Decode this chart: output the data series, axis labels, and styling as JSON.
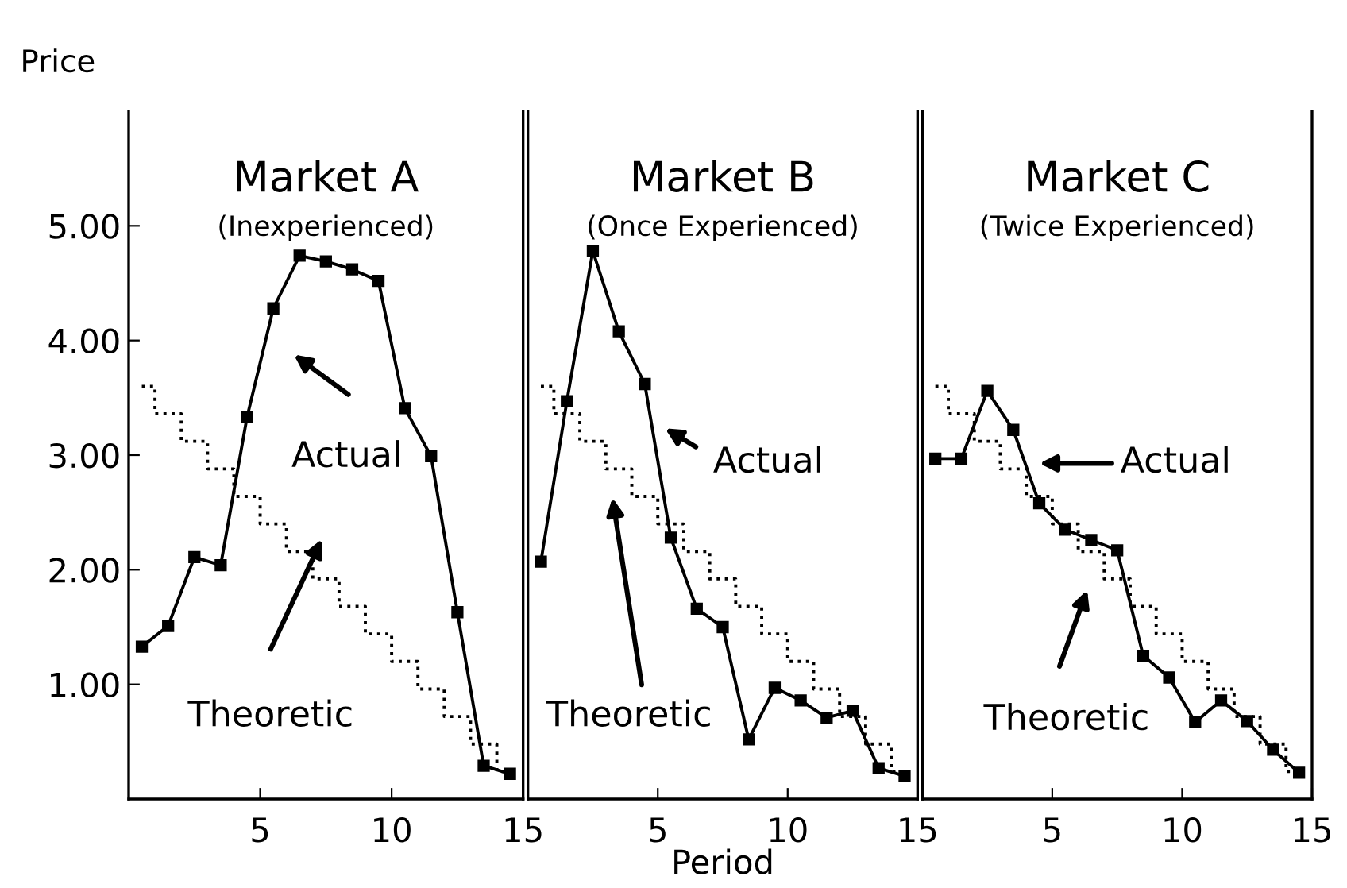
{
  "chart_data": [
    {
      "type": "line",
      "title": "Market A",
      "subtitle": "(Inexperienced)",
      "ylabel": "Price",
      "xlim": [
        0,
        15
      ],
      "xticks": [
        5,
        10,
        15
      ],
      "ylim": [
        0,
        6
      ],
      "yticks": [
        {
          "value": 1,
          "label": "1.00"
        },
        {
          "value": 2,
          "label": "2.00"
        },
        {
          "value": 3,
          "label": "3.00"
        },
        {
          "value": 4,
          "label": "4.00"
        },
        {
          "value": 5,
          "label": "5.00"
        }
      ],
      "grid": false,
      "x": [
        0.5,
        1.5,
        2.5,
        3.5,
        4.5,
        5.5,
        6.5,
        7.5,
        8.5,
        9.5,
        10.5,
        11.5,
        12.5,
        13.5,
        14.5
      ],
      "series": [
        {
          "color": "#000000",
          "marker": "square",
          "line_style": "solid",
          "values": [
            1.33,
            1.51,
            2.11,
            2.04,
            3.33,
            4.28,
            4.74,
            4.69,
            4.62,
            4.52,
            3.41,
            2.99,
            1.63,
            0.29,
            0.22
          ]
        },
        {
          "type": "step",
          "color": "#000000",
          "marker": "none",
          "line_style": "dotted",
          "values": [
            3.6,
            3.36,
            3.12,
            2.88,
            2.64,
            2.4,
            2.16,
            1.92,
            1.68,
            1.44,
            1.2,
            0.96,
            0.72,
            0.48,
            0.24
          ]
        }
      ],
      "annotations": [
        "Actual",
        "Theoretic"
      ]
    },
    {
      "type": "line",
      "title": "Market B",
      "subtitle": "(Once Experienced)",
      "xlabel": "Period",
      "xlim": [
        0,
        15
      ],
      "xticks": [
        5,
        10,
        15
      ],
      "ylim": [
        0,
        6
      ],
      "tick_labels": "x",
      "grid": false,
      "x": [
        0.5,
        1.5,
        2.5,
        3.5,
        4.5,
        5.5,
        6.5,
        7.5,
        8.5,
        9.5,
        10.5,
        11.5,
        12.5,
        13.5,
        14.5
      ],
      "series": [
        {
          "color": "#000000",
          "marker": "square",
          "line_style": "solid",
          "values": [
            2.07,
            3.47,
            4.78,
            4.08,
            3.62,
            2.28,
            1.66,
            1.5,
            0.52,
            0.97,
            0.86,
            0.71,
            0.77,
            0.27,
            0.2
          ]
        },
        {
          "type": "step",
          "color": "#000000",
          "marker": "none",
          "line_style": "dotted",
          "values": [
            3.6,
            3.36,
            3.12,
            2.88,
            2.64,
            2.4,
            2.16,
            1.92,
            1.68,
            1.44,
            1.2,
            0.96,
            0.72,
            0.48,
            0.24
          ]
        }
      ],
      "annotations": [
        "Actual",
        "Theoretic"
      ]
    },
    {
      "type": "line",
      "title": "Market C",
      "subtitle": "(Twice Experienced)",
      "xlim": [
        0,
        15
      ],
      "xticks": [
        5,
        10,
        15
      ],
      "ylim": [
        0,
        6
      ],
      "tick_labels": "x",
      "grid": false,
      "x": [
        0.5,
        1.5,
        2.5,
        3.5,
        4.5,
        5.5,
        6.5,
        7.5,
        8.5,
        9.5,
        10.5,
        11.5,
        12.5,
        13.5,
        14.5
      ],
      "series": [
        {
          "color": "#000000",
          "marker": "square",
          "line_style": "solid",
          "values": [
            2.97,
            2.97,
            3.56,
            3.22,
            2.58,
            2.35,
            2.26,
            2.17,
            1.25,
            1.06,
            0.67,
            0.86,
            0.68,
            0.43,
            0.23
          ]
        },
        {
          "type": "step",
          "color": "#000000",
          "marker": "none",
          "line_style": "dotted",
          "values": [
            3.6,
            3.36,
            3.12,
            2.88,
            2.64,
            2.4,
            2.16,
            1.92,
            1.68,
            1.44,
            1.2,
            0.96,
            0.72,
            0.48,
            0.24
          ]
        }
      ],
      "annotations": [
        "Actual",
        "Theoretic"
      ]
    }
  ]
}
